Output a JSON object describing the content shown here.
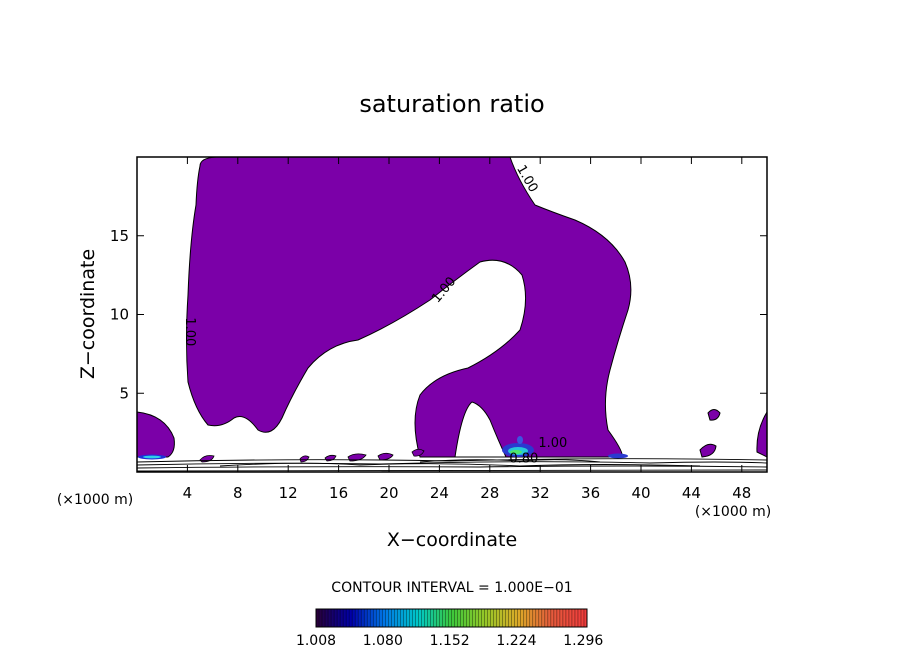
{
  "chart_data": {
    "type": "contour",
    "title": "saturation ratio",
    "xlabel": "X−coordinate",
    "ylabel": "Z−coordinate",
    "x_unit": "(×1000 m)",
    "x_unit_right": "(×1000 m)",
    "xlim": [
      0,
      50
    ],
    "ylim": [
      0,
      20
    ],
    "x_ticks": [
      4,
      8,
      12,
      16,
      20,
      24,
      28,
      32,
      36,
      40,
      44,
      48
    ],
    "y_ticks": [
      5,
      10,
      15
    ],
    "contour_interval": "CONTOUR INTERVAL = 1.000E−01",
    "contour_labels": [
      {
        "text": "1.00",
        "x": 30.7,
        "y": 18.5
      },
      {
        "text": "1.00",
        "x": 24.6,
        "y": 11.4
      },
      {
        "text": "1.00",
        "x": 3.9,
        "y": 8.9
      },
      {
        "text": "1.00",
        "x": 33.0,
        "y": 1.6
      },
      {
        "text": "0.80",
        "x": 30.7,
        "y": 0.6
      }
    ],
    "fill_color": "#7b00a8",
    "colorbar": {
      "tick_labels": [
        "1.008",
        "1.080",
        "1.152",
        "1.224",
        "1.296"
      ],
      "min": 1.008,
      "max": 1.3
    }
  }
}
